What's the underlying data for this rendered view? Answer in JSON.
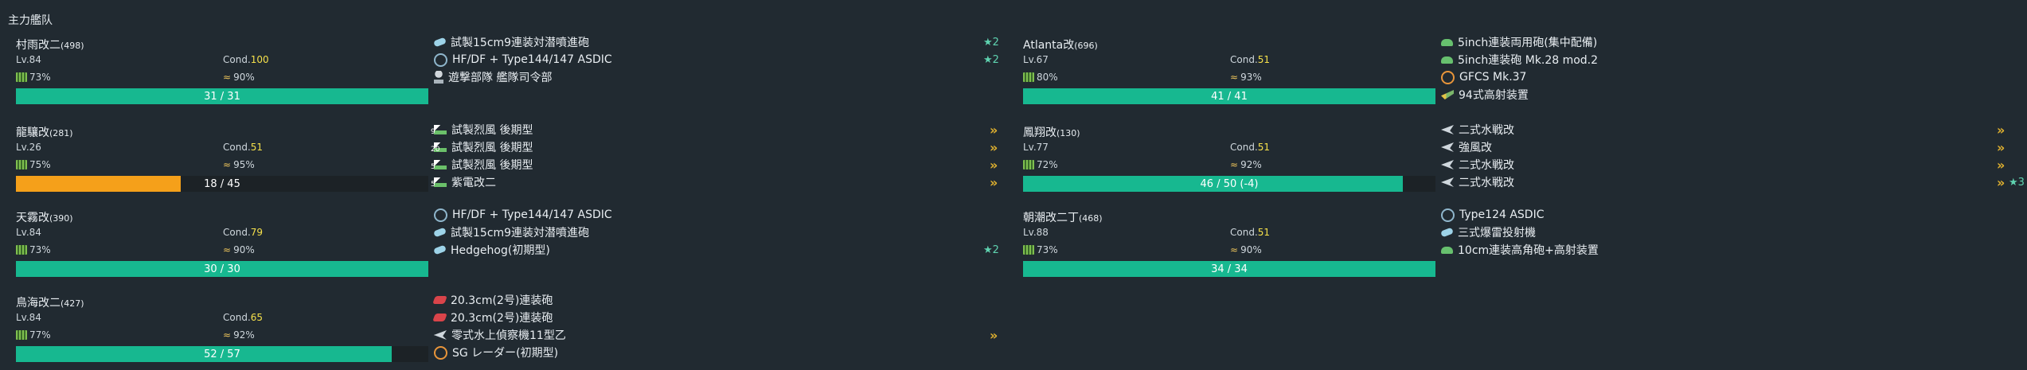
{
  "fleet": {
    "title": "主力艦队"
  },
  "ships": [
    {
      "name": "村雨改二",
      "id": "(498)",
      "lv": "Lv.84",
      "cond_label": "Cond.",
      "cond": "100",
      "fuel": "73%",
      "ammo": "90%",
      "hp": "31 / 31",
      "hp_ratio": 1.0,
      "hp_color": "#17b890",
      "equips": [
        {
          "icon": "dc-icon",
          "name": "試製15cm9連装対潜噴進砲",
          "level": "★2"
        },
        {
          "icon": "sonar-icon",
          "name": "HF/DF + Type144/147 ASDIC",
          "level": "★2"
        },
        {
          "icon": "command-icon",
          "name": "遊撃部隊 艦隊司令部",
          "level": ""
        }
      ]
    },
    {
      "name": "龍驤改",
      "id": "(281)",
      "lv": "Lv.26",
      "cond_label": "Cond.",
      "cond": "51",
      "fuel": "75%",
      "ammo": "95%",
      "hp": "18 / 45",
      "hp_ratio": 0.4,
      "hp_color": "#f5a01a",
      "equips": [
        {
          "icon": "fighter-icon",
          "count": "9",
          "name": "試製烈風 後期型",
          "prof": "»"
        },
        {
          "icon": "fighter-icon",
          "count": "20",
          "name": "試製烈風 後期型",
          "prof": "»"
        },
        {
          "icon": "fighter-icon",
          "count": "5",
          "name": "試製烈風 後期型",
          "prof": "»"
        },
        {
          "icon": "fighter-icon",
          "count": "5",
          "name": "紫電改二",
          "prof": "»"
        }
      ]
    },
    {
      "name": "天霧改",
      "id": "(390)",
      "lv": "Lv.84",
      "cond_label": "Cond.",
      "cond": "79",
      "fuel": "73%",
      "ammo": "90%",
      "hp": "30 / 30",
      "hp_ratio": 1.0,
      "hp_color": "#17b890",
      "equips": [
        {
          "icon": "sonar-icon",
          "name": "HF/DF + Type144/147 ASDIC",
          "level": ""
        },
        {
          "icon": "dc-icon",
          "name": "試製15cm9連装対潜噴進砲",
          "level": ""
        },
        {
          "icon": "dc-icon",
          "name": "Hedgehog(初期型)",
          "level": "★2"
        }
      ]
    },
    {
      "name": "鳥海改二",
      "id": "(427)",
      "lv": "Lv.84",
      "cond_label": "Cond.",
      "cond": "65",
      "fuel": "77%",
      "ammo": "92%",
      "hp": "52 / 57",
      "hp_ratio": 0.912,
      "hp_color": "#17b890",
      "equips": [
        {
          "icon": "main-gun-icon",
          "name": "20.3cm(2号)連装砲"
        },
        {
          "icon": "main-gun-icon",
          "name": "20.3cm(2号)連装砲"
        },
        {
          "icon": "seaplane-icon",
          "count": "3",
          "name": "零式水上偵察機11型乙",
          "prof": "»"
        },
        {
          "icon": "radar-icon",
          "name": "SG レーダー(初期型)"
        }
      ]
    },
    {
      "name": "Atlanta改",
      "id": "(696)",
      "lv": "Lv.67",
      "cond_label": "Cond.",
      "cond": "51",
      "fuel": "80%",
      "ammo": "93%",
      "hp": "41 / 41",
      "hp_ratio": 1.0,
      "hp_color": "#17b890",
      "equips": [
        {
          "icon": "secondary-gun-icon",
          "name": "5inch連装両用砲(集中配備)"
        },
        {
          "icon": "secondary-gun-icon",
          "name": "5inch連装砲 Mk.28 mod.2"
        },
        {
          "icon": "radar-icon",
          "name": "GFCS Mk.37"
        },
        {
          "icon": "aa-icon",
          "name": "94式高射装置"
        }
      ]
    },
    {
      "name": "鳳翔改",
      "id": "(130)",
      "lv": "Lv.77",
      "cond_label": "Cond.",
      "cond": "51",
      "fuel": "72%",
      "ammo": "92%",
      "hp": "46 / 50 (-4)",
      "hp_ratio": 0.92,
      "hp_color": "#17b890",
      "equips": [
        {
          "icon": "torpedo-bomber-icon",
          "count": "5",
          "name": "二式水戦改",
          "prof": "»"
        },
        {
          "icon": "torpedo-bomber-icon",
          "count": "6",
          "name": "強風改",
          "prof": "»"
        },
        {
          "icon": "torpedo-bomber-icon",
          "count": "5",
          "name": "二式水戦改",
          "prof": "»"
        },
        {
          "icon": "torpedo-bomber-icon",
          "count": "6",
          "name": "二式水戦改",
          "prof": "»",
          "level": "★3"
        }
      ]
    },
    {
      "name": "朝潮改二丁",
      "id": "(468)",
      "lv": "Lv.88",
      "cond_label": "Cond.",
      "cond": "51",
      "fuel": "73%",
      "ammo": "90%",
      "hp": "34 / 34",
      "hp_ratio": 1.0,
      "hp_color": "#17b890",
      "equips": [
        {
          "icon": "sonar-icon",
          "name": "Type124 ASDIC"
        },
        {
          "icon": "dc-icon",
          "name": "三式爆雷投射機"
        },
        {
          "icon": "secondary-gun-icon",
          "name": "10cm連装高角砲+高射装置"
        }
      ]
    }
  ]
}
